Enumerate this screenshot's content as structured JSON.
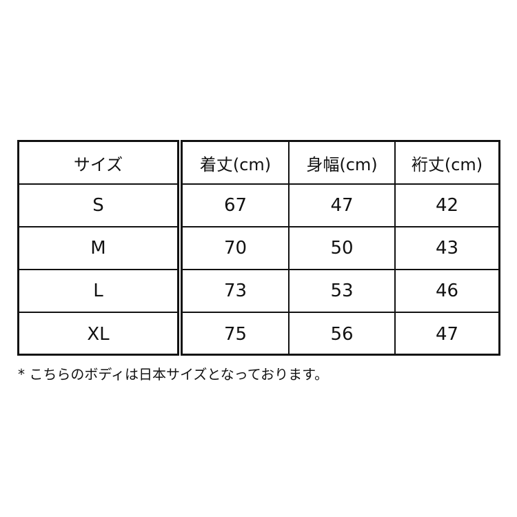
{
  "headers": [
    "サイズ",
    "着丈(cm)",
    "身幅(cm)",
    "裄丈(cm)"
  ],
  "rows": [
    [
      "S",
      "67",
      "47",
      "42"
    ],
    [
      "M",
      "70",
      "50",
      "43"
    ],
    [
      "L",
      "73",
      "53",
      "46"
    ],
    [
      "XL",
      "75",
      "56",
      "47"
    ]
  ],
  "note": "* こちらのボディは日本サイズとなっております。"
}
